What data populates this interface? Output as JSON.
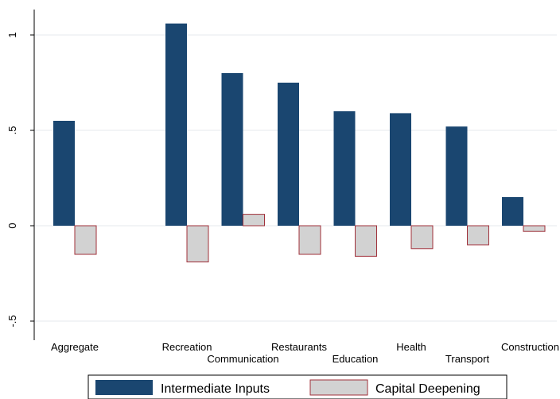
{
  "chart_data": {
    "type": "bar",
    "title": "",
    "xlabel": "",
    "ylabel": "",
    "categories": [
      "Aggregate",
      "Recreation",
      "Communication",
      "Restaurants",
      "Education",
      "Health",
      "Transport",
      "Construction"
    ],
    "series": [
      {
        "name": "Intermediate Inputs",
        "color": "#1a4670",
        "values": [
          0.55,
          1.06,
          0.8,
          0.75,
          0.6,
          0.59,
          0.52,
          0.15
        ]
      },
      {
        "name": "Capital Deepening",
        "color": "#d2d2d2",
        "edge_color": "#a0303a",
        "values": [
          -0.15,
          -0.19,
          0.06,
          -0.15,
          -0.16,
          -0.12,
          -0.1,
          -0.03
        ]
      }
    ],
    "ylim": [
      -0.5,
      1.1
    ],
    "yticks": [
      {
        "value": -0.5,
        "label": "-.5"
      },
      {
        "value": 0,
        "label": "0"
      },
      {
        "value": 0.5,
        "label": ".5"
      },
      {
        "value": 1,
        "label": "1"
      }
    ],
    "grid": true,
    "legend_position": "bottom"
  }
}
